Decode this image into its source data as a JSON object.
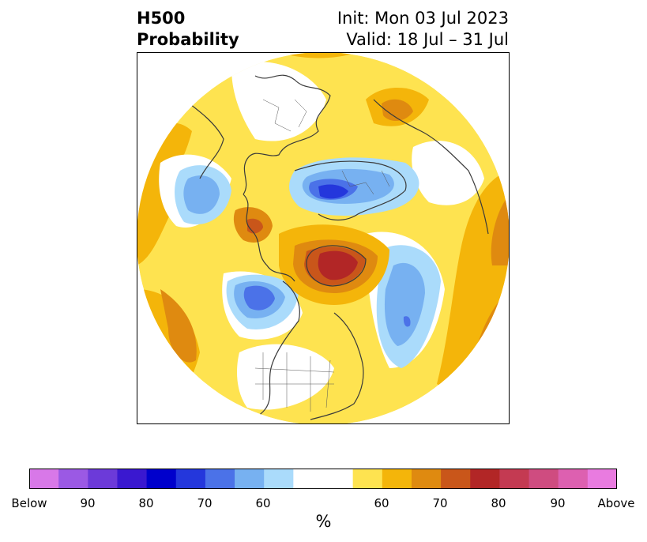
{
  "title": {
    "left_line1": "H500",
    "left_line2": "Probability",
    "right_line1": "Init: Mon 03 Jul 2023",
    "right_line2": "Valid: 18 Jul – 31 Jul"
  },
  "colorbar": {
    "unit": "%",
    "segments": [
      {
        "color": "#d878e8"
      },
      {
        "color": "#9b59e4"
      },
      {
        "color": "#6c3ad9"
      },
      {
        "color": "#3a18d0"
      },
      {
        "color": "#0000cc"
      },
      {
        "color": "#2437dc"
      },
      {
        "color": "#4b72e8"
      },
      {
        "color": "#77b1f1"
      },
      {
        "color": "#aadbfb"
      },
      {
        "color": "#ffffff"
      },
      {
        "color": "#ffffff"
      },
      {
        "color": "#fee350"
      },
      {
        "color": "#f4b50a"
      },
      {
        "color": "#df8a10"
      },
      {
        "color": "#c9561a"
      },
      {
        "color": "#b22626"
      },
      {
        "color": "#c43a52"
      },
      {
        "color": "#cf4c80"
      },
      {
        "color": "#dd60b0"
      },
      {
        "color": "#e97be0"
      }
    ],
    "tick_labels": [
      "Below",
      "90",
      "80",
      "70",
      "60",
      "60",
      "70",
      "80",
      "90",
      "Above"
    ]
  },
  "map_legend_colors": {
    "above_60": "#fee350",
    "above_65": "#f4b50a",
    "above_70": "#df8a10",
    "above_75": "#c9561a",
    "above_80": "#b22626",
    "below_60": "#aadbfb",
    "below_65": "#77b1f1",
    "below_70": "#4b72e8",
    "below_75": "#2437dc",
    "coast": "#3a3a3a"
  }
}
